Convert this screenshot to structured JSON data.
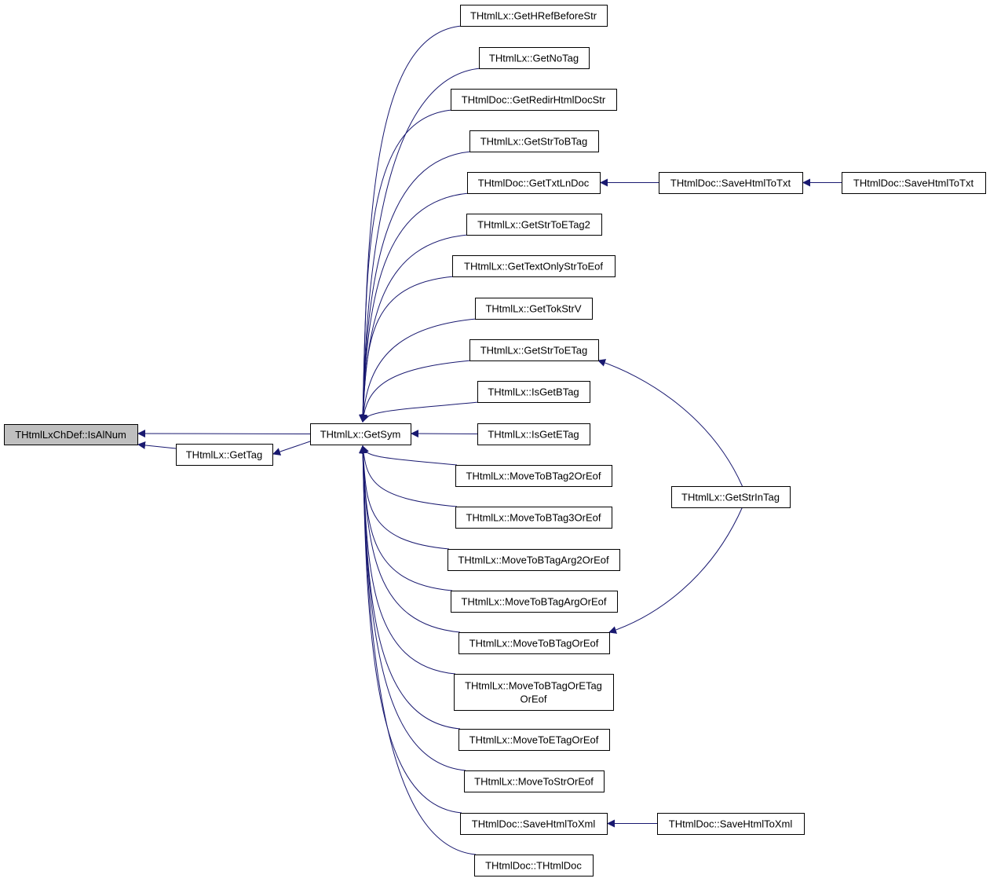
{
  "graph": {
    "edge_color": "#191970",
    "current_fill": "#bfbfbf",
    "nodes": [
      {
        "id": "isalnum",
        "label": [
          "THtmlLxChDef::IsAlNum"
        ],
        "current": true
      },
      {
        "id": "gettag",
        "label": [
          "THtmlLx::GetTag"
        ]
      },
      {
        "id": "getsym",
        "label": [
          "THtmlLx::GetSym"
        ]
      },
      {
        "id": "n1",
        "label": [
          "THtmlLx::GetHRefBeforeStr"
        ]
      },
      {
        "id": "n2",
        "label": [
          "THtmlLx::GetNoTag"
        ]
      },
      {
        "id": "n3",
        "label": [
          "THtmlDoc::GetRedirHtmlDocStr"
        ]
      },
      {
        "id": "n4",
        "label": [
          "THtmlLx::GetStrToBTag"
        ]
      },
      {
        "id": "n5",
        "label": [
          "THtmlDoc::GetTxtLnDoc"
        ]
      },
      {
        "id": "n6",
        "label": [
          "THtmlLx::GetStrToETag2"
        ]
      },
      {
        "id": "n7",
        "label": [
          "THtmlLx::GetTextOnlyStrToEof"
        ]
      },
      {
        "id": "n8",
        "label": [
          "THtmlLx::GetTokStrV"
        ]
      },
      {
        "id": "n9",
        "label": [
          "THtmlLx::GetStrToETag"
        ]
      },
      {
        "id": "n10",
        "label": [
          "THtmlLx::IsGetBTag"
        ]
      },
      {
        "id": "n11",
        "label": [
          "THtmlLx::IsGetETag"
        ]
      },
      {
        "id": "n12",
        "label": [
          "THtmlLx::MoveToBTag2OrEof"
        ]
      },
      {
        "id": "n13",
        "label": [
          "THtmlLx::MoveToBTag3OrEof"
        ]
      },
      {
        "id": "n14",
        "label": [
          "THtmlLx::MoveToBTagArg2OrEof"
        ]
      },
      {
        "id": "n15",
        "label": [
          "THtmlLx::MoveToBTagArgOrEof"
        ]
      },
      {
        "id": "n16",
        "label": [
          "THtmlLx::MoveToBTagOrEof"
        ]
      },
      {
        "id": "n17",
        "label": [
          "THtmlLx::MoveToBTagOrETag",
          "OrEof"
        ]
      },
      {
        "id": "n18",
        "label": [
          "THtmlLx::MoveToETagOrEof"
        ]
      },
      {
        "id": "n19",
        "label": [
          "THtmlLx::MoveToStrOrEof"
        ]
      },
      {
        "id": "n20",
        "label": [
          "THtmlDoc::SaveHtmlToXml"
        ]
      },
      {
        "id": "n21",
        "label": [
          "THtmlDoc::THtmlDoc"
        ]
      },
      {
        "id": "txt1",
        "label": [
          "THtmlDoc::SaveHtmlToTxt"
        ]
      },
      {
        "id": "txt2",
        "label": [
          "THtmlDoc::SaveHtmlToTxt"
        ]
      },
      {
        "id": "strintag",
        "label": [
          "THtmlLx::GetStrInTag"
        ]
      },
      {
        "id": "xml2",
        "label": [
          "THtmlDoc::SaveHtmlToXml"
        ]
      }
    ],
    "edges": [
      [
        "getsym",
        "isalnum"
      ],
      [
        "gettag",
        "isalnum"
      ],
      [
        "getsym",
        "gettag"
      ],
      [
        "n1",
        "getsym"
      ],
      [
        "n2",
        "getsym"
      ],
      [
        "n3",
        "getsym"
      ],
      [
        "n4",
        "getsym"
      ],
      [
        "n5",
        "getsym"
      ],
      [
        "n6",
        "getsym"
      ],
      [
        "n7",
        "getsym"
      ],
      [
        "n8",
        "getsym"
      ],
      [
        "n9",
        "getsym"
      ],
      [
        "n10",
        "getsym"
      ],
      [
        "n11",
        "getsym"
      ],
      [
        "n12",
        "getsym"
      ],
      [
        "n13",
        "getsym"
      ],
      [
        "n14",
        "getsym"
      ],
      [
        "n15",
        "getsym"
      ],
      [
        "n16",
        "getsym"
      ],
      [
        "n17",
        "getsym"
      ],
      [
        "n18",
        "getsym"
      ],
      [
        "n19",
        "getsym"
      ],
      [
        "n20",
        "getsym"
      ],
      [
        "n21",
        "getsym"
      ],
      [
        "txt1",
        "n5"
      ],
      [
        "txt2",
        "txt1"
      ],
      [
        "strintag",
        "n9"
      ],
      [
        "strintag",
        "n16"
      ],
      [
        "xml2",
        "n20"
      ]
    ]
  }
}
